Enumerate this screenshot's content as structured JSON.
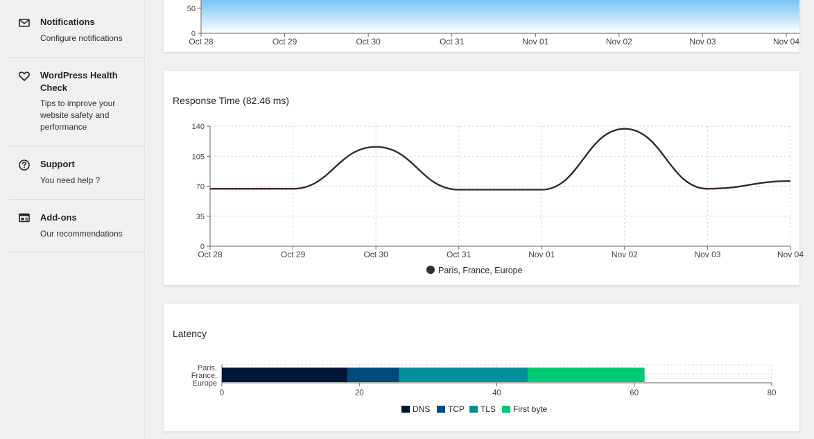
{
  "sidebar": {
    "items": [
      {
        "name": "notifications",
        "title": "Notifications",
        "desc": "Configure notifications",
        "icon": "envelope-icon"
      },
      {
        "name": "health-check",
        "title": "WordPress Health Check",
        "desc": "Tips to improve your website safety and performance",
        "icon": "heart-icon"
      },
      {
        "name": "support",
        "title": "Support",
        "desc": "You need help ?",
        "icon": "question-circle-icon"
      },
      {
        "name": "addons",
        "title": "Add-ons",
        "desc": "Our recommendations",
        "icon": "addons-icon"
      }
    ]
  },
  "dates": [
    "Oct 28",
    "Oct 29",
    "Oct 30",
    "Oct 31",
    "Nov 01",
    "Nov 02",
    "Nov 03",
    "Nov 04"
  ],
  "top_chart": {
    "y_ticks": [
      "50",
      "0"
    ]
  },
  "response_card": {
    "title": "Response Time (82.46 ms)"
  },
  "latency_card": {
    "title": "Latency"
  },
  "colors": {
    "response_line": "#3b2a28",
    "dns": "#02163a",
    "tcp": "#004b7a",
    "tls": "#008f98",
    "first_byte": "#00c973",
    "area_top": "#5bb8ef"
  },
  "chart_data": [
    {
      "type": "area",
      "x": [
        "Oct 28",
        "Oct 29",
        "Oct 30",
        "Oct 31",
        "Nov 01",
        "Nov 02",
        "Nov 03",
        "Nov 04"
      ],
      "y_ticks": [
        0,
        50
      ]
    },
    {
      "type": "line",
      "title": "Response Time (82.46 ms)",
      "x": [
        "Oct 28",
        "Oct 29",
        "Oct 30",
        "Oct 31",
        "Nov 01",
        "Nov 02",
        "Nov 03",
        "Nov 04"
      ],
      "series": [
        {
          "name": "Paris, France, Europe",
          "values": [
            67,
            67,
            116,
            66,
            66,
            137,
            67,
            76
          ]
        }
      ],
      "ylim": [
        0,
        140
      ],
      "y_ticks": [
        0,
        35,
        70,
        105,
        140
      ],
      "grid": true,
      "legend": "bottom"
    },
    {
      "type": "bar",
      "title": "Latency",
      "orientation": "horizontal",
      "stacked": true,
      "categories": [
        "Paris, France, Europe"
      ],
      "series": [
        {
          "name": "DNS",
          "values": [
            18.3
          ]
        },
        {
          "name": "TCP",
          "values": [
            7.5
          ]
        },
        {
          "name": "TLS",
          "values": [
            18.7
          ]
        },
        {
          "name": "First byte",
          "values": [
            17
          ]
        }
      ],
      "xlim": [
        0,
        80
      ],
      "x_ticks": [
        0,
        20,
        40,
        60,
        80
      ],
      "grid": true,
      "legend": "bottom"
    }
  ]
}
